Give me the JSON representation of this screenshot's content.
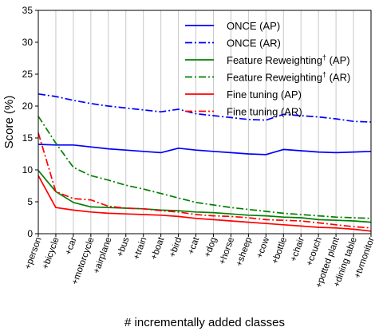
{
  "chart_data": {
    "type": "line",
    "title": "",
    "xlabel": "# incrementally added classes",
    "ylabel": "Score (%)",
    "ylim": [
      0,
      35
    ],
    "yticks": [
      0,
      5,
      10,
      15,
      20,
      25,
      30,
      35
    ],
    "grid": "vertical",
    "legend_position": "top-right",
    "categories": [
      "+person",
      "+bicycle",
      "+car",
      "+motorcycle",
      "+airplane",
      "+bus",
      "+train",
      "+boat",
      "+bird",
      "+cat",
      "+dog",
      "+horse",
      "+sheep",
      "+cow",
      "+bottle",
      "+chair",
      "+couch",
      "+potted plant",
      "+dining table",
      "+tvmonitor"
    ],
    "series": [
      {
        "name": "ONCE (AP)",
        "color": "#0000ff",
        "dash": "solid",
        "values": [
          14.0,
          13.9,
          13.9,
          13.6,
          13.3,
          13.1,
          12.9,
          12.7,
          13.4,
          13.1,
          12.9,
          12.7,
          12.5,
          12.4,
          13.2,
          13.0,
          12.8,
          12.7,
          12.8,
          12.9
        ]
      },
      {
        "name": "ONCE (AR)",
        "color": "#0000ff",
        "dash": "dashdot",
        "values": [
          21.9,
          21.5,
          20.9,
          20.4,
          20.0,
          19.7,
          19.4,
          19.1,
          19.5,
          18.8,
          18.5,
          18.2,
          17.9,
          17.8,
          18.7,
          18.5,
          18.3,
          18.0,
          17.6,
          17.5
        ]
      },
      {
        "name": "Feature Reweighting",
        "color": "#008000",
        "dash": "solid",
        "values": [
          9.9,
          6.6,
          4.9,
          4.2,
          4.1,
          4.0,
          3.9,
          3.7,
          3.6,
          3.4,
          3.3,
          3.1,
          2.9,
          2.8,
          2.6,
          2.5,
          2.2,
          2.1,
          2.0,
          1.8
        ]
      },
      {
        "name": "Feature Reweighting",
        "color": "#008000",
        "dash": "dashdot",
        "values": [
          18.4,
          14.2,
          10.4,
          9.1,
          8.4,
          7.6,
          7.0,
          6.3,
          5.6,
          4.9,
          4.5,
          4.1,
          3.8,
          3.5,
          3.2,
          3.0,
          2.8,
          2.6,
          2.5,
          2.4
        ]
      },
      {
        "name": "Fine tuning (AP)",
        "color": "#ff0000",
        "dash": "solid",
        "values": [
          9.1,
          4.1,
          3.7,
          3.4,
          3.2,
          3.1,
          3.0,
          2.9,
          2.7,
          2.4,
          2.2,
          2.0,
          1.8,
          1.6,
          1.4,
          1.2,
          1.0,
          0.9,
          0.7,
          0.4
        ]
      },
      {
        "name": "Fine tuning (AR)",
        "color": "#ff0000",
        "dash": "dashdot",
        "values": [
          15.8,
          6.6,
          5.5,
          5.3,
          4.3,
          4.0,
          3.9,
          3.6,
          3.4,
          3.0,
          2.8,
          2.7,
          2.5,
          2.2,
          2.1,
          2.0,
          1.7,
          1.4,
          1.1,
          0.9
        ]
      }
    ]
  }
}
